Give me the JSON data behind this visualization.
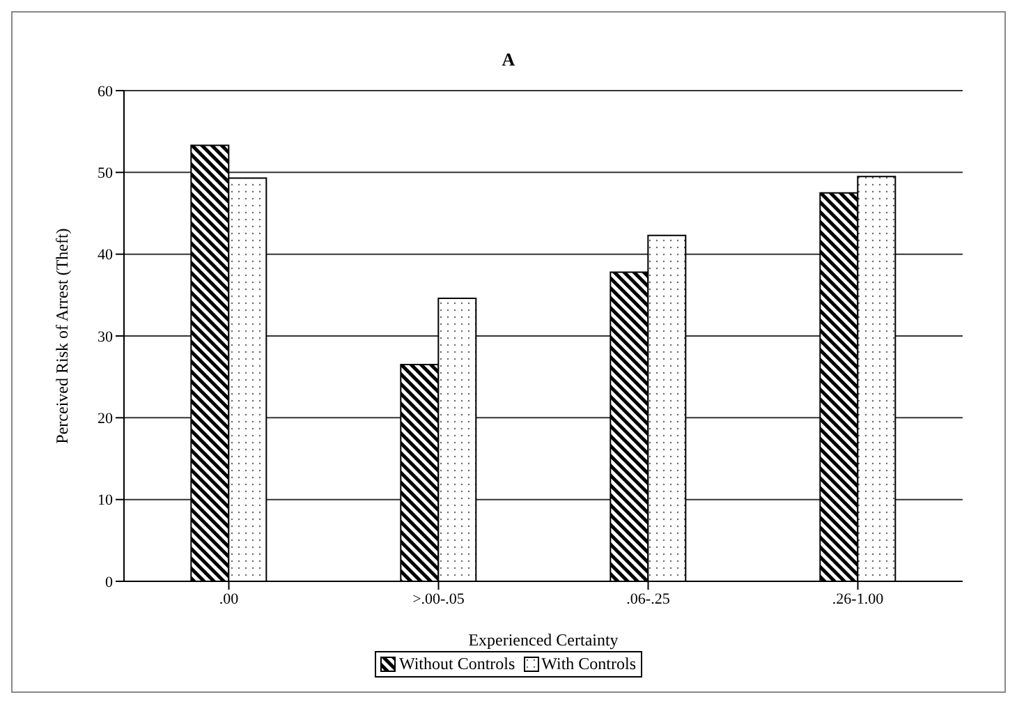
{
  "chart_data": {
    "type": "bar",
    "title": "A",
    "xlabel": "Experienced Certainty",
    "ylabel": "Perceived Risk of Arrest (Theft)",
    "categories": [
      ".00",
      ">.00-.05",
      ".06-.25",
      ".26-1.00"
    ],
    "series": [
      {
        "name": "Without Controls",
        "color": "#000000",
        "values": [
          53.3,
          26.5,
          37.8,
          47.5
        ]
      },
      {
        "name": "With Controls",
        "color": "#000000",
        "values": [
          49.3,
          34.6,
          42.3,
          49.5
        ]
      }
    ],
    "ylim": [
      0,
      60
    ],
    "yticks": [
      0,
      10,
      20,
      30,
      40,
      50,
      60
    ],
    "grid": "y",
    "legend": "bottom"
  }
}
